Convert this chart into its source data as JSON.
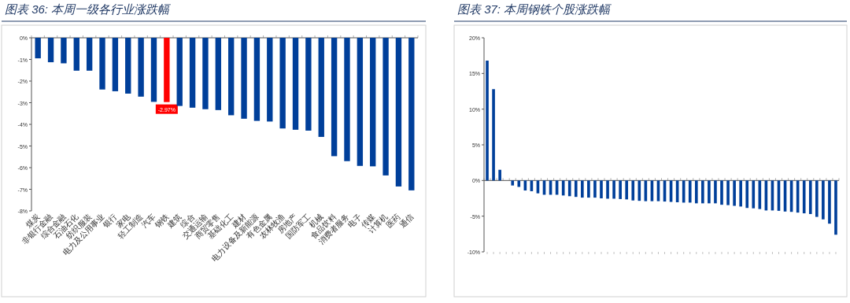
{
  "chart_data": [
    {
      "type": "bar",
      "title": "图表 36:  本周一级各行业涨跌幅",
      "categories": [
        "煤炭",
        "非银行金融",
        "综合金融",
        "石油石化",
        "纺织服装",
        "电力及公用事业",
        "银行",
        "家电",
        "轻工制造",
        "汽车",
        "钢铁",
        "建筑",
        "综合",
        "交通运输",
        "商贸零售",
        "基础化工",
        "建材",
        "电力设备及新能源",
        "有色金属",
        "农林牧渔",
        "房地产",
        "国防军工",
        "机械",
        "食品饮料",
        "消费者服务",
        "电子",
        "传媒",
        "计算机",
        "医药",
        "通信"
      ],
      "values": [
        -0.95,
        -1.13,
        -1.18,
        -1.52,
        -1.52,
        -2.39,
        -2.47,
        -2.58,
        -2.72,
        -2.96,
        -2.97,
        -3.15,
        -3.23,
        -3.3,
        -3.34,
        -3.58,
        -3.74,
        -3.84,
        -3.87,
        -4.19,
        -4.25,
        -4.29,
        -4.58,
        -5.47,
        -5.7,
        -5.92,
        -5.94,
        -6.36,
        -6.87,
        -7.05
      ],
      "colors": [
        "#003f9a",
        "#003f9a",
        "#003f9a",
        "#003f9a",
        "#003f9a",
        "#003f9a",
        "#003f9a",
        "#003f9a",
        "#003f9a",
        "#003f9a",
        "#ff0000",
        "#003f9a",
        "#003f9a",
        "#003f9a",
        "#003f9a",
        "#003f9a",
        "#003f9a",
        "#003f9a",
        "#003f9a",
        "#003f9a",
        "#003f9a",
        "#003f9a",
        "#003f9a",
        "#003f9a",
        "#003f9a",
        "#003f9a",
        "#003f9a",
        "#003f9a",
        "#003f9a",
        "#003f9a"
      ],
      "value_labels": [
        null,
        null,
        null,
        null,
        null,
        null,
        null,
        null,
        null,
        null,
        "-2.97%",
        null,
        null,
        null,
        null,
        null,
        null,
        null,
        null,
        null,
        null,
        null,
        null,
        null,
        null,
        null,
        null,
        null,
        null,
        null
      ],
      "ylim": [
        -8,
        0
      ],
      "yticks": [
        {
          "value": 0,
          "label": "0%"
        },
        {
          "value": -1,
          "label": "-1%"
        },
        {
          "value": -2,
          "label": "-2%"
        },
        {
          "value": -3,
          "label": "-3%"
        },
        {
          "value": -4,
          "label": "-4%"
        },
        {
          "value": -5,
          "label": "-5%"
        },
        {
          "value": -6,
          "label": "-6%"
        },
        {
          "value": -7,
          "label": "-7%"
        },
        {
          "value": -8,
          "label": "-8%"
        }
      ]
    },
    {
      "type": "bar",
      "title": "图表 37:  本周钢铁个股涨跌幅",
      "categories": [
        null,
        null,
        null,
        null,
        null,
        null,
        null,
        null,
        null,
        null,
        null,
        null,
        null,
        null,
        null,
        null,
        null,
        null,
        null,
        null,
        null,
        null,
        null,
        null,
        null,
        null,
        null,
        null,
        null,
        null,
        null,
        null,
        null,
        null,
        null,
        null,
        null,
        null,
        null,
        null,
        null,
        null,
        null,
        null,
        null,
        null,
        null,
        null,
        null,
        null,
        null,
        null,
        null,
        null,
        null,
        null
      ],
      "values": [
        16.8,
        12.8,
        1.5,
        0,
        -0.7,
        -0.9,
        -1.4,
        -1.5,
        -1.8,
        -2.0,
        -2.0,
        -2.0,
        -2.1,
        -2.2,
        -2.3,
        -2.4,
        -2.4,
        -2.4,
        -2.5,
        -2.55,
        -2.55,
        -2.6,
        -2.65,
        -2.8,
        -2.85,
        -2.9,
        -2.9,
        -2.9,
        -2.95,
        -3.0,
        -3.05,
        -3.1,
        -3.1,
        -3.2,
        -3.2,
        -3.2,
        -3.2,
        -3.4,
        -3.45,
        -3.55,
        -3.65,
        -3.85,
        -3.9,
        -4.0,
        -4.2,
        -4.2,
        -4.25,
        -4.35,
        -4.4,
        -4.5,
        -4.6,
        -4.7,
        -5.1,
        -5.45,
        -6.05,
        -7.6
      ],
      "color": "#003f9a",
      "ylim": [
        -10,
        20
      ],
      "yticks": [
        {
          "value": 20,
          "label": "20%"
        },
        {
          "value": 15,
          "label": "15%"
        },
        {
          "value": 10,
          "label": "10%"
        },
        {
          "value": 5,
          "label": "5%"
        },
        {
          "value": 0,
          "label": "0%"
        },
        {
          "value": -5,
          "label": "-5%"
        },
        {
          "value": -10,
          "label": "-10%"
        }
      ]
    }
  ]
}
